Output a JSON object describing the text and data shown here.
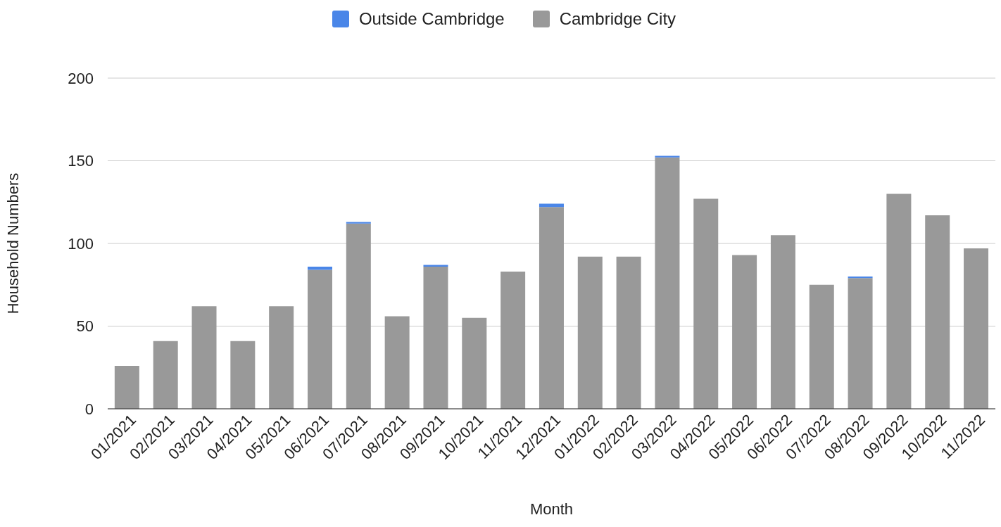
{
  "chart_data": {
    "type": "bar",
    "stacked": true,
    "xlabel": "Month",
    "ylabel": "Household Numbers",
    "categories": [
      "01/2021",
      "02/2021",
      "03/2021",
      "04/2021",
      "05/2021",
      "06/2021",
      "07/2021",
      "08/2021",
      "09/2021",
      "10/2021",
      "11/2021",
      "12/2021",
      "01/2022",
      "02/2022",
      "03/2022",
      "04/2022",
      "05/2022",
      "06/2022",
      "07/2022",
      "08/2022",
      "09/2022",
      "10/2022",
      "11/2022"
    ],
    "series": [
      {
        "name": "Cambridge City",
        "color": "#999999",
        "values": [
          26,
          41,
          62,
          41,
          62,
          84,
          112,
          56,
          86,
          55,
          83,
          122,
          92,
          92,
          152,
          127,
          93,
          105,
          75,
          79,
          130,
          117,
          97
        ]
      },
      {
        "name": "Outside Cambridge",
        "color": "#4a86e8",
        "values": [
          0,
          0,
          0,
          0,
          0,
          2,
          1,
          0,
          1,
          0,
          0,
          2,
          0,
          0,
          1,
          0,
          0,
          0,
          0,
          1,
          0,
          0,
          0
        ]
      }
    ],
    "ylim": [
      0,
      200
    ],
    "yticks": [
      0,
      50,
      100,
      150,
      200
    ],
    "grid": "y",
    "legend": "top"
  }
}
